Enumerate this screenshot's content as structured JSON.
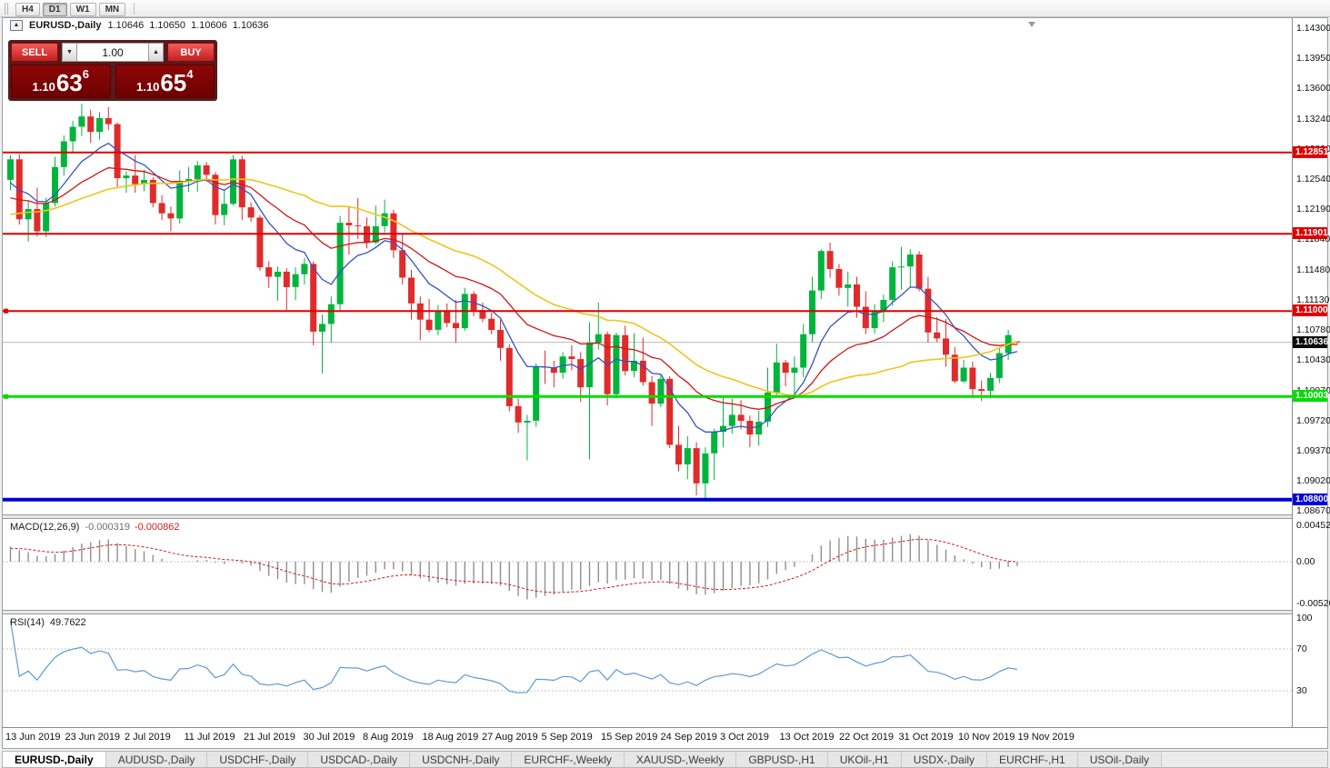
{
  "toolbar": {
    "timeframes": [
      "H4",
      "D1",
      "W1",
      "MN"
    ],
    "active": "D1"
  },
  "chart_header": {
    "collapse_glyph": "▲",
    "title": "EURUSD-,Daily",
    "ohlc": [
      "1.10646",
      "1.10650",
      "1.10606",
      "1.10636"
    ]
  },
  "one_click": {
    "sell_label": "SELL",
    "buy_label": "BUY",
    "volume": "1.00",
    "spinner_down": "▼",
    "spinner_up": "▲",
    "bid": {
      "big": "1.10",
      "pips": "63",
      "pip_sup": "6"
    },
    "ask": {
      "big": "1.10",
      "pips": "65",
      "pip_sup": "4"
    }
  },
  "price_axis": {
    "labels": [
      "1.14300",
      "1.13950",
      "1.13600",
      "1.13240",
      "1.12890",
      "1.12540",
      "1.12190",
      "1.11840",
      "1.11480",
      "1.11130",
      "1.10780",
      "1.10430",
      "1.10070",
      "1.09720",
      "1.09370",
      "1.09020",
      "1.08670"
    ]
  },
  "levels": [
    {
      "price": 1.12851,
      "label": "1.12851",
      "color": "#e00000",
      "width": 2,
      "handle": false
    },
    {
      "price": 1.11901,
      "label": "1.11901",
      "color": "#e00000",
      "width": 2,
      "handle": false
    },
    {
      "price": 1.11,
      "label": "1.11000",
      "color": "#e00000",
      "width": 2,
      "handle": true
    },
    {
      "price": 1.10003,
      "label": "1.10003",
      "color": "#00dd00",
      "width": 3,
      "handle": true
    },
    {
      "price": 1.088,
      "label": "1.08800",
      "color": "#0000dd",
      "width": 4,
      "handle": false
    }
  ],
  "current_price": {
    "value": 1.10636,
    "label": "1.10636"
  },
  "chart_data": {
    "type": "candlestick",
    "symbol": "EURUSD-",
    "timeframe": "Daily",
    "x_labels": [
      "13 Jun 2019",
      "23 Jun 2019",
      "2 Jul 2019",
      "11 Jul 2019",
      "21 Jul 2019",
      "30 Jul 2019",
      "8 Aug 2019",
      "18 Aug 2019",
      "27 Aug 2019",
      "5 Sep 2019",
      "15 Sep 2019",
      "24 Sep 2019",
      "3 Oct 2019",
      "13 Oct 2019",
      "22 Oct 2019",
      "31 Oct 2019",
      "10 Nov 2019",
      "19 Nov 2019"
    ],
    "y_range": [
      1.08617,
      1.14353
    ],
    "candles": [
      [
        1.1253,
        1.1282,
        1.1241,
        1.1277
      ],
      [
        1.1277,
        1.1283,
        1.1201,
        1.1207
      ],
      [
        1.1207,
        1.1229,
        1.1181,
        1.1219
      ],
      [
        1.1219,
        1.1244,
        1.1187,
        1.1193
      ],
      [
        1.1193,
        1.1232,
        1.1186,
        1.1226
      ],
      [
        1.1226,
        1.128,
        1.1222,
        1.1268
      ],
      [
        1.1268,
        1.1305,
        1.1258,
        1.1298
      ],
      [
        1.1298,
        1.1322,
        1.1286,
        1.1315
      ],
      [
        1.1315,
        1.1342,
        1.1304,
        1.1327
      ],
      [
        1.1327,
        1.1335,
        1.1296,
        1.1309
      ],
      [
        1.1309,
        1.1332,
        1.13,
        1.1325
      ],
      [
        1.1325,
        1.1338,
        1.1311,
        1.1318
      ],
      [
        1.1318,
        1.132,
        1.1245,
        1.1255
      ],
      [
        1.1255,
        1.1263,
        1.1238,
        1.1258
      ],
      [
        1.1258,
        1.1282,
        1.1238,
        1.1248
      ],
      [
        1.1248,
        1.1265,
        1.124,
        1.1253
      ],
      [
        1.1253,
        1.1256,
        1.1221,
        1.1226
      ],
      [
        1.1226,
        1.1235,
        1.1206,
        1.1214
      ],
      [
        1.1214,
        1.1222,
        1.1193,
        1.1208
      ],
      [
        1.1208,
        1.1264,
        1.1202,
        1.1252
      ],
      [
        1.1252,
        1.1268,
        1.1239,
        1.1254
      ],
      [
        1.1254,
        1.1275,
        1.1239,
        1.127
      ],
      [
        1.127,
        1.1274,
        1.1251,
        1.1259
      ],
      [
        1.1259,
        1.1262,
        1.1201,
        1.1212
      ],
      [
        1.1212,
        1.1242,
        1.12,
        1.1225
      ],
      [
        1.1225,
        1.1282,
        1.1223,
        1.1277
      ],
      [
        1.1277,
        1.1281,
        1.1206,
        1.1221
      ],
      [
        1.1221,
        1.1227,
        1.1204,
        1.1209
      ],
      [
        1.1209,
        1.1212,
        1.1147,
        1.1151
      ],
      [
        1.1151,
        1.1158,
        1.1127,
        1.114
      ],
      [
        1.114,
        1.1152,
        1.1112,
        1.1146
      ],
      [
        1.1146,
        1.115,
        1.1101,
        1.1128
      ],
      [
        1.1128,
        1.1151,
        1.1113,
        1.1143
      ],
      [
        1.1143,
        1.1162,
        1.1131,
        1.1155
      ],
      [
        1.1155,
        1.1158,
        1.106,
        1.1076
      ],
      [
        1.1076,
        1.1096,
        1.1027,
        1.1085
      ],
      [
        1.1085,
        1.1117,
        1.1063,
        1.1108
      ],
      [
        1.1108,
        1.1211,
        1.1101,
        1.1203
      ],
      [
        1.1203,
        1.1222,
        1.1166,
        1.12
      ],
      [
        1.12,
        1.1232,
        1.1184,
        1.1199
      ],
      [
        1.1199,
        1.1209,
        1.1173,
        1.118
      ],
      [
        1.118,
        1.1223,
        1.1178,
        1.1199
      ],
      [
        1.1199,
        1.123,
        1.1192,
        1.1214
      ],
      [
        1.1214,
        1.1218,
        1.1162,
        1.1171
      ],
      [
        1.1171,
        1.119,
        1.1131,
        1.1139
      ],
      [
        1.1139,
        1.1148,
        1.109,
        1.1109
      ],
      [
        1.1109,
        1.1117,
        1.1066,
        1.109
      ],
      [
        1.109,
        1.1114,
        1.1075,
        1.1078
      ],
      [
        1.1078,
        1.1107,
        1.1072,
        1.11
      ],
      [
        1.11,
        1.1109,
        1.1081,
        1.1086
      ],
      [
        1.1086,
        1.1113,
        1.1063,
        1.108
      ],
      [
        1.108,
        1.1127,
        1.1077,
        1.112
      ],
      [
        1.112,
        1.1123,
        1.1094,
        1.1101
      ],
      [
        1.1101,
        1.111,
        1.1087,
        1.1091
      ],
      [
        1.1091,
        1.1098,
        1.1073,
        1.1078
      ],
      [
        1.1078,
        1.109,
        1.1042,
        1.1057
      ],
      [
        1.1057,
        1.1061,
        1.0983,
        1.0989
      ],
      [
        1.0989,
        1.0998,
        1.0958,
        1.097
      ],
      [
        1.097,
        1.0979,
        1.0926,
        1.0972
      ],
      [
        1.0972,
        1.1039,
        1.0965,
        1.1035
      ],
      [
        1.1035,
        1.1054,
        1.1015,
        1.1034
      ],
      [
        1.1034,
        1.1042,
        1.1011,
        1.1028
      ],
      [
        1.1028,
        1.1052,
        1.1021,
        1.1047
      ],
      [
        1.1047,
        1.106,
        1.1031,
        1.1044
      ],
      [
        1.1044,
        1.1052,
        1.0994,
        1.1011
      ],
      [
        1.1011,
        1.1087,
        1.0927,
        1.1063
      ],
      [
        1.1063,
        1.111,
        1.1055,
        1.1073
      ],
      [
        1.1073,
        1.1076,
        1.099,
        1.1003
      ],
      [
        1.1003,
        1.1075,
        1.0998,
        1.1072
      ],
      [
        1.1072,
        1.1083,
        1.1025,
        1.103
      ],
      [
        1.103,
        1.1074,
        1.1023,
        1.1042
      ],
      [
        1.1042,
        1.1069,
        1.1013,
        1.1017
      ],
      [
        1.1017,
        1.1024,
        1.0966,
        1.0992
      ],
      [
        1.0992,
        1.1025,
        1.0988,
        1.1021
      ],
      [
        1.1021,
        1.1024,
        1.094,
        1.0944
      ],
      [
        1.0944,
        1.0966,
        1.0913,
        1.0921
      ],
      [
        1.0921,
        1.0954,
        1.0904,
        1.094
      ],
      [
        1.094,
        1.0947,
        1.0885,
        1.0899
      ],
      [
        1.0899,
        1.0941,
        1.0879,
        1.0934
      ],
      [
        1.0934,
        1.0963,
        1.0903,
        1.0959
      ],
      [
        1.0959,
        1.0999,
        1.0941,
        1.0966
      ],
      [
        1.0966,
        1.0998,
        1.0957,
        1.0979
      ],
      [
        1.0979,
        1.0996,
        1.0962,
        1.0972
      ],
      [
        1.0972,
        1.0978,
        1.0941,
        1.0956
      ],
      [
        1.0956,
        1.0984,
        1.0943,
        1.0971
      ],
      [
        1.0971,
        1.1034,
        1.0965,
        1.1005
      ],
      [
        1.1005,
        1.1062,
        1.1002,
        1.104
      ],
      [
        1.104,
        1.1043,
        1.1012,
        1.1028
      ],
      [
        1.1028,
        1.1047,
        1.1001,
        1.1034
      ],
      [
        1.1034,
        1.1085,
        1.1023,
        1.1073
      ],
      [
        1.1073,
        1.114,
        1.1064,
        1.1124
      ],
      [
        1.1124,
        1.1172,
        1.1114,
        1.117
      ],
      [
        1.117,
        1.118,
        1.1139,
        1.1149
      ],
      [
        1.1149,
        1.1155,
        1.1118,
        1.1127
      ],
      [
        1.1127,
        1.1146,
        1.1105,
        1.1131
      ],
      [
        1.1131,
        1.114,
        1.1092,
        1.1105
      ],
      [
        1.1105,
        1.1123,
        1.1073,
        1.108
      ],
      [
        1.108,
        1.1108,
        1.1074,
        1.1099
      ],
      [
        1.1099,
        1.1119,
        1.1087,
        1.1113
      ],
      [
        1.1113,
        1.1158,
        1.1106,
        1.1151
      ],
      [
        1.1151,
        1.1175,
        1.1125,
        1.1152
      ],
      [
        1.1152,
        1.1172,
        1.1128,
        1.1166
      ],
      [
        1.1166,
        1.117,
        1.1123,
        1.1126
      ],
      [
        1.1126,
        1.114,
        1.1063,
        1.1075
      ],
      [
        1.1075,
        1.1093,
        1.1064,
        1.1068
      ],
      [
        1.1068,
        1.1091,
        1.1035,
        1.1049
      ],
      [
        1.1049,
        1.1058,
        1.1016,
        1.1018
      ],
      [
        1.1018,
        1.1043,
        1.1016,
        1.1034
      ],
      [
        1.1034,
        1.1041,
        1.1002,
        1.1009
      ],
      [
        1.1009,
        1.1019,
        1.0995,
        1.1007
      ],
      [
        1.1007,
        1.1028,
        1.0998,
        1.1022
      ],
      [
        1.1022,
        1.1057,
        1.1016,
        1.1051
      ],
      [
        1.1051,
        1.1078,
        1.1043,
        1.1072
      ],
      [
        1.10646,
        1.1065,
        1.10606,
        1.10636
      ]
    ],
    "warmup": {
      "from": 1.115,
      "to": 1.1253,
      "bars": 40
    },
    "ma": [
      {
        "name": "fast",
        "type": "ema",
        "period": 9,
        "color": "#3452c4",
        "width": 1.3
      },
      {
        "name": "mid",
        "type": "ema",
        "period": 21,
        "color": "#d01616",
        "width": 1.3
      },
      {
        "name": "slow",
        "type": "sma",
        "period": 34,
        "color": "#efc51b",
        "width": 1.6
      }
    ],
    "macd": {
      "title": "MACD(12,26,9)",
      "values": [
        "-0.000319",
        "-0.000862"
      ],
      "axis": [
        {
          "text": "0.0045236",
          "value": 0.0045236
        },
        {
          "text": "0.00",
          "value": 0
        },
        {
          "text": "-0.0052056",
          "value": -0.0052056
        }
      ]
    },
    "rsi": {
      "title": "RSI(14)",
      "value": "49.7622",
      "axis": [
        100,
        70,
        30
      ],
      "levels": [
        70,
        30
      ]
    }
  },
  "tabs": [
    "EURUSD-,Daily",
    "AUDUSD-,Daily",
    "USDCHF-,Daily",
    "USDCAD-,Daily",
    "USDCNH-,Daily",
    "EURCHF-,Weekly",
    "XAUUSD-,Weekly",
    "GBPUSD-,H1",
    "UKOil-,H1",
    "USDX-,Daily",
    "EURCHF-,H1",
    "USOil-,Daily"
  ],
  "active_tab": 0,
  "colors": {
    "up": "#00b43c",
    "down": "#e02b2b",
    "macd_hist": "#8f8f8f",
    "macd_signal": "#cc2020",
    "rsi": "#5e9ad6",
    "price_tag_current": "#0a0a0a"
  }
}
